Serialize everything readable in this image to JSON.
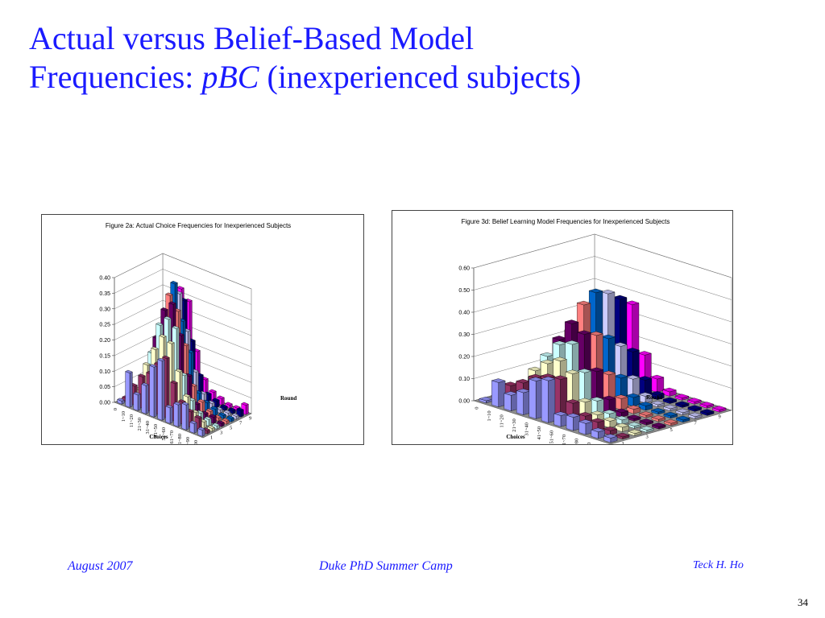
{
  "slide": {
    "title_line1": "Actual versus Belief-Based Model",
    "title_line2_prefix": "Frequencies: ",
    "title_line2_italic": "pBC",
    "title_line2_suffix": " (inexperienced subjects)"
  },
  "footer": {
    "left": "August 2007",
    "center": "Duke PhD Summer Camp",
    "right": "Teck H. Ho",
    "page": "34"
  },
  "chart_data": [
    {
      "type": "bar3d",
      "title": "Figure 2a: Actual Choice Frequencies for Inexperienced Subjects",
      "xlabel": "Choices",
      "zlabel": "Round",
      "ylim": [
        0,
        0.4
      ],
      "yticks": [
        "0.00",
        "0.05",
        "0.10",
        "0.15",
        "0.20",
        "0.25",
        "0.30",
        "0.35",
        "0.40"
      ],
      "categories": [
        "0",
        "1~10",
        "11~20",
        "21~30",
        "31~40",
        "41~50",
        "51~60",
        "61~70",
        "71~80",
        "81~90",
        "91~100"
      ],
      "round_ticks": [
        "1",
        "3",
        "5",
        "7",
        "9"
      ],
      "series": [
        {
          "name": "1",
          "values": [
            0.01,
            0.11,
            0.05,
            0.09,
            0.16,
            0.19,
            0.05,
            0.07,
            0.08,
            0.03,
            0.02
          ]
        },
        {
          "name": "2",
          "values": [
            0.01,
            0.06,
            0.1,
            0.12,
            0.16,
            0.19,
            0.12,
            0.07,
            0.05,
            0.04,
            0.01
          ]
        },
        {
          "name": "3",
          "values": [
            0.01,
            0.04,
            0.13,
            0.19,
            0.24,
            0.23,
            0.15,
            0.08,
            0.04,
            0.02,
            0.01
          ]
        },
        {
          "name": "4",
          "values": [
            0.01,
            0.05,
            0.16,
            0.26,
            0.29,
            0.27,
            0.13,
            0.06,
            0.03,
            0.02,
            0.01
          ]
        },
        {
          "name": "5",
          "values": [
            0.01,
            0.06,
            0.2,
            0.3,
            0.33,
            0.24,
            0.12,
            0.04,
            0.02,
            0.02,
            0.01
          ]
        },
        {
          "name": "6",
          "values": [
            0.01,
            0.07,
            0.23,
            0.34,
            0.3,
            0.2,
            0.08,
            0.04,
            0.02,
            0.01,
            0.01
          ]
        },
        {
          "name": "7",
          "values": [
            0.01,
            0.06,
            0.22,
            0.37,
            0.26,
            0.17,
            0.05,
            0.03,
            0.02,
            0.01,
            0.01
          ]
        },
        {
          "name": "8",
          "values": [
            0.01,
            0.08,
            0.25,
            0.33,
            0.22,
            0.1,
            0.04,
            0.02,
            0.01,
            0.01,
            0.01
          ]
        },
        {
          "name": "9",
          "values": [
            0.01,
            0.07,
            0.28,
            0.3,
            0.18,
            0.08,
            0.03,
            0.02,
            0.01,
            0.01,
            0.02
          ]
        },
        {
          "name": "10",
          "values": [
            0.01,
            0.09,
            0.32,
            0.29,
            0.14,
            0.06,
            0.03,
            0.02,
            0.01,
            0.01,
            0.03
          ]
        }
      ]
    },
    {
      "type": "bar3d",
      "title": "Figure 3d: Belief Learning Model Frequencies for Inexperienced Subjects",
      "xlabel": "Choices",
      "zlabel": "Round",
      "ylim": [
        0,
        0.6
      ],
      "yticks": [
        "0.00",
        "0.10",
        "0.20",
        "0.30",
        "0.40",
        "0.50",
        "0.60"
      ],
      "categories": [
        "0",
        "1~10",
        "11~20",
        "21~30",
        "31~40",
        "41~50",
        "51~60",
        "61~70",
        "71~80",
        "81~90",
        "91~100"
      ],
      "round_ticks": [
        "1",
        "3",
        "5",
        "7",
        "9"
      ],
      "series": [
        {
          "name": "1",
          "values": [
            0.01,
            0.11,
            0.07,
            0.1,
            0.17,
            0.19,
            0.05,
            0.06,
            0.05,
            0.03,
            0.02
          ]
        },
        {
          "name": "2",
          "values": [
            0.01,
            0.08,
            0.11,
            0.15,
            0.17,
            0.18,
            0.09,
            0.05,
            0.04,
            0.02,
            0.01
          ]
        },
        {
          "name": "3",
          "values": [
            0.01,
            0.07,
            0.15,
            0.2,
            0.23,
            0.19,
            0.08,
            0.04,
            0.03,
            0.02,
            0.01
          ]
        },
        {
          "name": "4",
          "values": [
            0.01,
            0.08,
            0.2,
            0.27,
            0.29,
            0.18,
            0.07,
            0.03,
            0.02,
            0.01,
            0.01
          ]
        },
        {
          "name": "5",
          "values": [
            0.01,
            0.09,
            0.26,
            0.35,
            0.32,
            0.17,
            0.06,
            0.02,
            0.01,
            0.01,
            0.01
          ]
        },
        {
          "name": "6",
          "values": [
            0.01,
            0.1,
            0.28,
            0.42,
            0.3,
            0.14,
            0.05,
            0.02,
            0.01,
            0.01,
            0.01
          ]
        },
        {
          "name": "7",
          "values": [
            0.01,
            0.11,
            0.3,
            0.46,
            0.27,
            0.11,
            0.04,
            0.02,
            0.01,
            0.01,
            0.01
          ]
        },
        {
          "name": "8",
          "values": [
            0.01,
            0.11,
            0.32,
            0.44,
            0.22,
            0.09,
            0.03,
            0.01,
            0.01,
            0.01,
            0.01
          ]
        },
        {
          "name": "9",
          "values": [
            0.01,
            0.12,
            0.33,
            0.4,
            0.18,
            0.07,
            0.02,
            0.01,
            0.01,
            0.01,
            0.01
          ]
        },
        {
          "name": "10",
          "values": [
            0.01,
            0.12,
            0.34,
            0.36,
            0.15,
            0.06,
            0.02,
            0.01,
            0.01,
            0.01,
            0.01
          ]
        }
      ]
    }
  ],
  "colors": {
    "title_blue": "#1a1aff",
    "floor": "#8c8c8c",
    "series": [
      "#9999ff",
      "#993366",
      "#ffffcc",
      "#ccffff",
      "#660066",
      "#ff8080",
      "#0066cc",
      "#ccccff",
      "#000080",
      "#ff00ff"
    ]
  }
}
